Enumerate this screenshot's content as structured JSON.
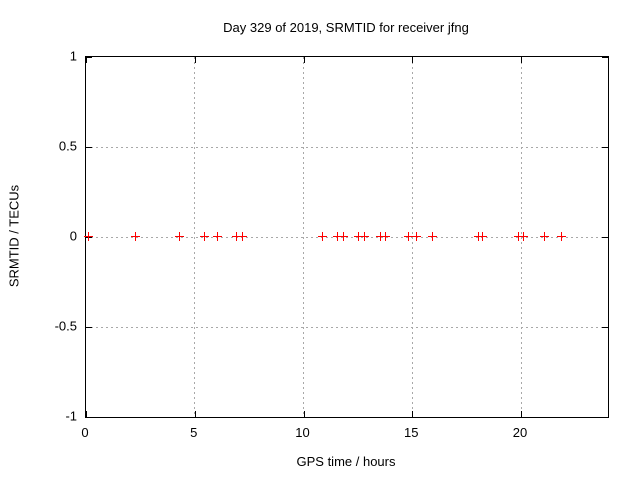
{
  "chart_data": {
    "type": "scatter",
    "title": "Day 329 of 2019, SRMTID for receiver jfng",
    "xlabel": "GPS time / hours",
    "ylabel": "SRMTID / TECUs",
    "xlim": [
      0,
      24
    ],
    "ylim": [
      -1,
      1
    ],
    "xticks": [
      0,
      5,
      10,
      15,
      20
    ],
    "xtick_labels": [
      "0",
      "5",
      "10",
      "15",
      "20"
    ],
    "yticks": [
      1,
      0.5,
      0,
      -0.5,
      -1
    ],
    "ytick_labels": [
      "1",
      "0.5",
      "0",
      "-0.5",
      "-1"
    ],
    "grid": true,
    "legend_position": "none",
    "marker": "plus",
    "colors": {
      "marker": "#ff0000",
      "grid": "#a8a8a8",
      "border": "#000000",
      "background": "#ffffff",
      "text": "#000000"
    },
    "series": [
      {
        "x": [
          0.15,
          2.3,
          4.3,
          5.45,
          6.05,
          6.95,
          7.2,
          10.9,
          11.6,
          11.85,
          12.55,
          12.85,
          13.55,
          13.8,
          14.85,
          15.2,
          15.95,
          18.05,
          18.25,
          19.9,
          20.15,
          21.1,
          21.9
        ],
        "y": [
          0,
          0,
          0,
          0,
          0,
          0,
          0,
          0,
          0,
          0,
          0,
          0,
          0,
          0,
          0,
          0,
          0,
          0,
          0,
          0,
          0,
          0,
          0
        ]
      }
    ]
  }
}
